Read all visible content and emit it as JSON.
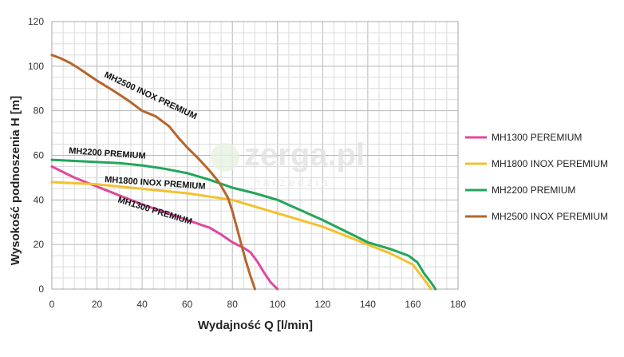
{
  "watermark": {
    "main": "zerga.pl",
    "sub": "narzedzia"
  },
  "chart_data": {
    "type": "line",
    "xlabel": "Wydajność Q [l/min]",
    "ylabel": "Wysokość podnoszenia H [m]",
    "xlim": [
      0,
      180
    ],
    "ylim": [
      0,
      120
    ],
    "xticks": [
      "0",
      "20",
      "40",
      "60",
      "80",
      "100",
      "120",
      "140",
      "160",
      "180"
    ],
    "yticks": [
      "0",
      "20",
      "40",
      "60",
      "80",
      "100",
      "120"
    ],
    "grid": true,
    "legend_position": "right",
    "series": [
      {
        "name": "MH1300 PEREMIUM",
        "curve_label": "MH1300 PREMIUM",
        "color": "#e0489d",
        "x": [
          0,
          10,
          20,
          30,
          40,
          50,
          60,
          70,
          75,
          80,
          85,
          88,
          91,
          94,
          97,
          100
        ],
        "y": [
          55,
          50,
          46,
          42,
          38,
          34.5,
          31,
          27.5,
          24.5,
          21,
          18.5,
          16.5,
          12.5,
          7.5,
          3,
          0
        ]
      },
      {
        "name": "MH1800 INOX PEREMIUM",
        "curve_label": "MH1800 INOX PREMIUM",
        "color": "#f2c12e",
        "x": [
          0,
          20,
          40,
          60,
          80,
          90,
          100,
          120,
          140,
          150,
          160,
          163,
          166,
          168
        ],
        "y": [
          48,
          47,
          45,
          43,
          40,
          37,
          34,
          28,
          20,
          16,
          11,
          7,
          3,
          0
        ]
      },
      {
        "name": "MH2200 PREMIUM",
        "curve_label": "MH2200 PREMIUM",
        "color": "#22a55a",
        "x": [
          0,
          10,
          20,
          30,
          40,
          50,
          60,
          70,
          80,
          90,
          100,
          110,
          120,
          130,
          140,
          150,
          158,
          162,
          165,
          168,
          170
        ],
        "y": [
          58,
          57.5,
          57,
          56.5,
          55.5,
          54,
          52,
          49,
          45.5,
          43,
          40,
          35.5,
          31,
          26,
          21,
          18,
          15,
          12,
          7,
          3,
          0
        ]
      },
      {
        "name": "MH2500 INOX PEREMIUM",
        "curve_label": "MH2500 INOX PREMIUM",
        "color": "#b5652b",
        "x": [
          0,
          4,
          8,
          12,
          20,
          28,
          34,
          40,
          46,
          52,
          56,
          60,
          65,
          70,
          74,
          78,
          80,
          82,
          84,
          86,
          88,
          90
        ],
        "y": [
          105,
          103.5,
          101.5,
          99,
          93.5,
          88.5,
          84.5,
          80,
          77.5,
          73,
          68,
          63.5,
          58.5,
          53,
          48,
          41,
          35,
          27.5,
          20,
          12.5,
          6,
          0
        ]
      }
    ]
  }
}
